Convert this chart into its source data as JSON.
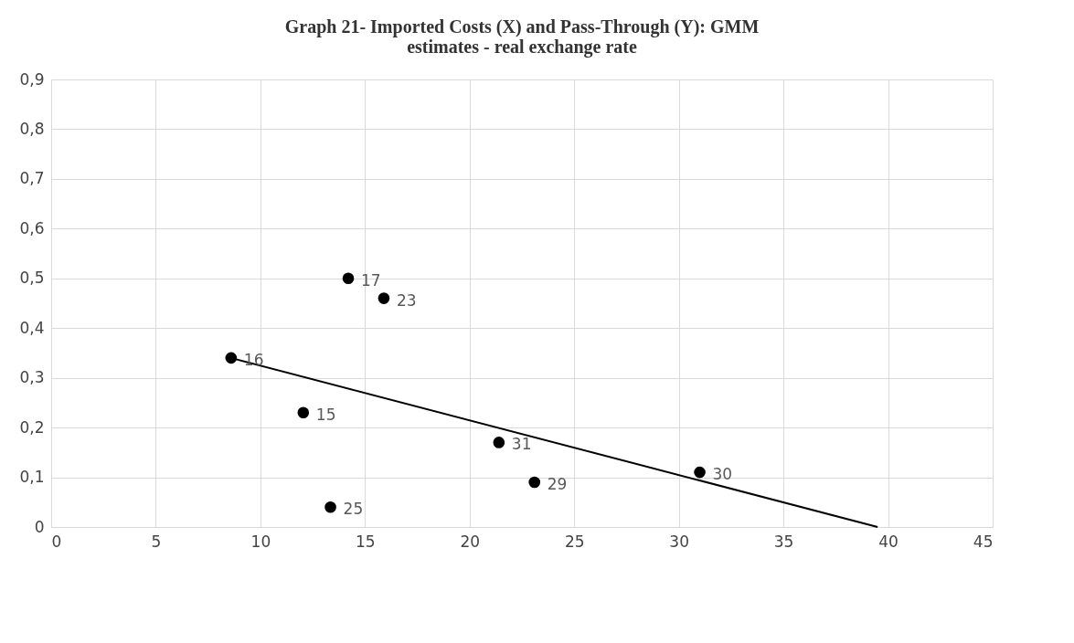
{
  "chart_data": {
    "type": "scatter",
    "title": [
      "Graph 21-  Imported Costs (X)  and Pass-Through (Y): GMM",
      "estimates - real exchange rate"
    ],
    "series": [
      {
        "color": "#000000",
        "marker": "circle",
        "x": [
          8.6,
          14.2,
          15.9,
          12.05,
          21.4,
          23.1,
          31.0,
          13.35
        ],
        "values": [
          0.34,
          0.5,
          0.46,
          0.23,
          0.17,
          0.09,
          0.11,
          0.04
        ]
      },
      {
        "type": "line",
        "color": "#000000",
        "marker": "none",
        "line_style": "solid",
        "x": [
          8.6,
          39.5
        ],
        "values": [
          0.34,
          0
        ]
      }
    ],
    "annotations": [
      {
        "text": "16",
        "x": 8.6,
        "y": 0.34
      },
      {
        "text": "17",
        "x": 14.2,
        "y": 0.5
      },
      {
        "text": "23",
        "x": 15.9,
        "y": 0.46
      },
      {
        "text": "15",
        "x": 12.05,
        "y": 0.23
      },
      {
        "text": "31",
        "x": 21.4,
        "y": 0.17
      },
      {
        "text": "29",
        "x": 23.1,
        "y": 0.09
      },
      {
        "text": "30",
        "x": 31.0,
        "y": 0.11
      },
      {
        "text": "25",
        "x": 13.35,
        "y": 0.04
      }
    ],
    "xlim": [
      0,
      45
    ],
    "xticks": [
      0,
      5,
      10,
      15,
      20,
      25,
      30,
      35,
      40,
      45
    ],
    "ylim": [
      0,
      0.9
    ],
    "yticks": [
      {
        "value": 0,
        "label": "0"
      },
      {
        "value": 0.1,
        "label": "0,1"
      },
      {
        "value": 0.2,
        "label": "0,2"
      },
      {
        "value": 0.3,
        "label": "0,3"
      },
      {
        "value": 0.4,
        "label": "0,4"
      },
      {
        "value": 0.5,
        "label": "0,5"
      },
      {
        "value": 0.6,
        "label": "0,6"
      },
      {
        "value": 0.7,
        "label": "0,7"
      },
      {
        "value": 0.8,
        "label": "0,8"
      },
      {
        "value": 0.9,
        "label": "0,9"
      }
    ],
    "grid": true
  }
}
